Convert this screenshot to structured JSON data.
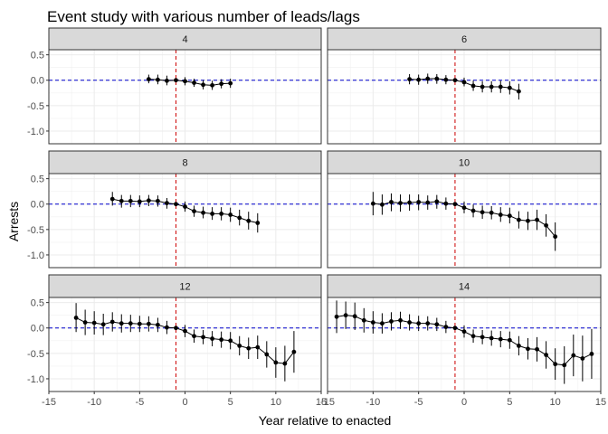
{
  "chart_data": {
    "type": "line",
    "title": "Event study with various number of leads/lags",
    "xlabel": "Year relative to enacted",
    "ylabel": "Arrests",
    "xlim": [
      -15,
      15
    ],
    "ylim": [
      -1.25,
      0.6
    ],
    "x_ticks": [
      -15,
      -10,
      -5,
      0,
      5,
      10,
      15
    ],
    "x_tick_labels": [
      "-15",
      "-10",
      "-5",
      "0",
      "5",
      "10",
      "15"
    ],
    "y_ticks": [
      0.5,
      0.0,
      -0.5,
      -1.0
    ],
    "y_tick_labels": [
      "0.5",
      "0.0",
      "-0.5",
      "-1.0"
    ],
    "reference_lines": {
      "horizontal_y": 0,
      "horizontal_color": "#0000cc",
      "vertical_x": -1,
      "vertical_color": "#cc0000"
    },
    "grid": true,
    "facets": [
      {
        "label": "4",
        "points": [
          {
            "x": -4,
            "y": 0.02,
            "lo": -0.06,
            "hi": 0.11
          },
          {
            "x": -3,
            "y": 0.01,
            "lo": -0.08,
            "hi": 0.11
          },
          {
            "x": -2,
            "y": -0.01,
            "lo": -0.1,
            "hi": 0.09
          },
          {
            "x": -1,
            "y": 0.0,
            "lo": 0.0,
            "hi": 0.0
          },
          {
            "x": 0,
            "y": -0.02,
            "lo": -0.1,
            "hi": 0.06
          },
          {
            "x": 1,
            "y": -0.05,
            "lo": -0.13,
            "hi": 0.03
          },
          {
            "x": 2,
            "y": -0.09,
            "lo": -0.18,
            "hi": 0.0
          },
          {
            "x": 3,
            "y": -0.1,
            "lo": -0.19,
            "hi": -0.01
          },
          {
            "x": 4,
            "y": -0.07,
            "lo": -0.16,
            "hi": 0.02
          },
          {
            "x": 5,
            "y": -0.06,
            "lo": -0.15,
            "hi": 0.03
          }
        ]
      },
      {
        "label": "6",
        "points": [
          {
            "x": -6,
            "y": 0.02,
            "lo": -0.08,
            "hi": 0.12
          },
          {
            "x": -5,
            "y": 0.01,
            "lo": -0.09,
            "hi": 0.11
          },
          {
            "x": -4,
            "y": 0.03,
            "lo": -0.07,
            "hi": 0.13
          },
          {
            "x": -3,
            "y": 0.03,
            "lo": -0.07,
            "hi": 0.12
          },
          {
            "x": -2,
            "y": 0.01,
            "lo": -0.08,
            "hi": 0.1
          },
          {
            "x": -1,
            "y": 0.0,
            "lo": 0.0,
            "hi": 0.0
          },
          {
            "x": 0,
            "y": -0.04,
            "lo": -0.12,
            "hi": 0.05
          },
          {
            "x": 1,
            "y": -0.11,
            "lo": -0.21,
            "hi": -0.01
          },
          {
            "x": 2,
            "y": -0.13,
            "lo": -0.24,
            "hi": -0.02
          },
          {
            "x": 3,
            "y": -0.13,
            "lo": -0.24,
            "hi": -0.02
          },
          {
            "x": 4,
            "y": -0.13,
            "lo": -0.25,
            "hi": -0.01
          },
          {
            "x": 5,
            "y": -0.15,
            "lo": -0.28,
            "hi": -0.02
          },
          {
            "x": 6,
            "y": -0.22,
            "lo": -0.38,
            "hi": -0.07
          }
        ]
      },
      {
        "label": "8",
        "points": [
          {
            "x": -8,
            "y": 0.1,
            "lo": -0.03,
            "hi": 0.24
          },
          {
            "x": -7,
            "y": 0.06,
            "lo": -0.07,
            "hi": 0.18
          },
          {
            "x": -6,
            "y": 0.06,
            "lo": -0.06,
            "hi": 0.18
          },
          {
            "x": -5,
            "y": 0.05,
            "lo": -0.06,
            "hi": 0.17
          },
          {
            "x": -4,
            "y": 0.07,
            "lo": -0.04,
            "hi": 0.18
          },
          {
            "x": -3,
            "y": 0.06,
            "lo": -0.05,
            "hi": 0.17
          },
          {
            "x": -2,
            "y": 0.02,
            "lo": -0.09,
            "hi": 0.12
          },
          {
            "x": -1,
            "y": 0.0,
            "lo": 0.0,
            "hi": 0.0
          },
          {
            "x": 0,
            "y": -0.05,
            "lo": -0.15,
            "hi": 0.05
          },
          {
            "x": 1,
            "y": -0.14,
            "lo": -0.25,
            "hi": -0.03
          },
          {
            "x": 2,
            "y": -0.17,
            "lo": -0.28,
            "hi": -0.05
          },
          {
            "x": 3,
            "y": -0.19,
            "lo": -0.31,
            "hi": -0.06
          },
          {
            "x": 4,
            "y": -0.19,
            "lo": -0.32,
            "hi": -0.06
          },
          {
            "x": 5,
            "y": -0.21,
            "lo": -0.35,
            "hi": -0.07
          },
          {
            "x": 6,
            "y": -0.27,
            "lo": -0.42,
            "hi": -0.11
          },
          {
            "x": 7,
            "y": -0.33,
            "lo": -0.5,
            "hi": -0.15
          },
          {
            "x": 8,
            "y": -0.37,
            "lo": -0.56,
            "hi": -0.18
          }
        ]
      },
      {
        "label": "10",
        "points": [
          {
            "x": -10,
            "y": 0.01,
            "lo": -0.22,
            "hi": 0.24
          },
          {
            "x": -9,
            "y": -0.01,
            "lo": -0.21,
            "hi": 0.19
          },
          {
            "x": -8,
            "y": 0.04,
            "lo": -0.14,
            "hi": 0.21
          },
          {
            "x": -7,
            "y": 0.02,
            "lo": -0.15,
            "hi": 0.19
          },
          {
            "x": -6,
            "y": 0.03,
            "lo": -0.13,
            "hi": 0.19
          },
          {
            "x": -5,
            "y": 0.04,
            "lo": -0.12,
            "hi": 0.19
          },
          {
            "x": -4,
            "y": 0.03,
            "lo": -0.11,
            "hi": 0.17
          },
          {
            "x": -3,
            "y": 0.05,
            "lo": -0.09,
            "hi": 0.18
          },
          {
            "x": -2,
            "y": 0.01,
            "lo": -0.11,
            "hi": 0.13
          },
          {
            "x": -1,
            "y": 0.0,
            "lo": 0.0,
            "hi": 0.0
          },
          {
            "x": 0,
            "y": -0.07,
            "lo": -0.18,
            "hi": 0.05
          },
          {
            "x": 1,
            "y": -0.13,
            "lo": -0.26,
            "hi": -0.01
          },
          {
            "x": 2,
            "y": -0.16,
            "lo": -0.29,
            "hi": -0.03
          },
          {
            "x": 3,
            "y": -0.17,
            "lo": -0.3,
            "hi": -0.04
          },
          {
            "x": 4,
            "y": -0.21,
            "lo": -0.35,
            "hi": -0.06
          },
          {
            "x": 5,
            "y": -0.23,
            "lo": -0.38,
            "hi": -0.07
          },
          {
            "x": 6,
            "y": -0.31,
            "lo": -0.48,
            "hi": -0.14
          },
          {
            "x": 7,
            "y": -0.33,
            "lo": -0.51,
            "hi": -0.15
          },
          {
            "x": 8,
            "y": -0.31,
            "lo": -0.51,
            "hi": -0.11
          },
          {
            "x": 9,
            "y": -0.42,
            "lo": -0.64,
            "hi": -0.2
          },
          {
            "x": 10,
            "y": -0.64,
            "lo": -0.92,
            "hi": -0.36
          }
        ]
      },
      {
        "label": "12",
        "points": [
          {
            "x": -12,
            "y": 0.2,
            "lo": -0.08,
            "hi": 0.49
          },
          {
            "x": -11,
            "y": 0.11,
            "lo": -0.14,
            "hi": 0.36
          },
          {
            "x": -10,
            "y": 0.1,
            "lo": -0.13,
            "hi": 0.33
          },
          {
            "x": -9,
            "y": 0.07,
            "lo": -0.14,
            "hi": 0.28
          },
          {
            "x": -8,
            "y": 0.12,
            "lo": -0.07,
            "hi": 0.31
          },
          {
            "x": -7,
            "y": 0.09,
            "lo": -0.09,
            "hi": 0.27
          },
          {
            "x": -6,
            "y": 0.09,
            "lo": -0.08,
            "hi": 0.26
          },
          {
            "x": -5,
            "y": 0.08,
            "lo": -0.08,
            "hi": 0.24
          },
          {
            "x": -4,
            "y": 0.08,
            "lo": -0.07,
            "hi": 0.23
          },
          {
            "x": -3,
            "y": 0.06,
            "lo": -0.08,
            "hi": 0.2
          },
          {
            "x": -2,
            "y": 0.01,
            "lo": -0.12,
            "hi": 0.14
          },
          {
            "x": -1,
            "y": 0.0,
            "lo": 0.0,
            "hi": 0.0
          },
          {
            "x": 0,
            "y": -0.06,
            "lo": -0.18,
            "hi": 0.06
          },
          {
            "x": 1,
            "y": -0.16,
            "lo": -0.29,
            "hi": -0.03
          },
          {
            "x": 2,
            "y": -0.18,
            "lo": -0.32,
            "hi": -0.04
          },
          {
            "x": 3,
            "y": -0.21,
            "lo": -0.36,
            "hi": -0.06
          },
          {
            "x": 4,
            "y": -0.23,
            "lo": -0.39,
            "hi": -0.07
          },
          {
            "x": 5,
            "y": -0.25,
            "lo": -0.42,
            "hi": -0.08
          },
          {
            "x": 6,
            "y": -0.35,
            "lo": -0.54,
            "hi": -0.16
          },
          {
            "x": 7,
            "y": -0.4,
            "lo": -0.61,
            "hi": -0.19
          },
          {
            "x": 8,
            "y": -0.38,
            "lo": -0.61,
            "hi": -0.15
          },
          {
            "x": 9,
            "y": -0.52,
            "lo": -0.78,
            "hi": -0.26
          },
          {
            "x": 10,
            "y": -0.68,
            "lo": -0.98,
            "hi": -0.38
          },
          {
            "x": 11,
            "y": -0.7,
            "lo": -1.05,
            "hi": -0.35
          },
          {
            "x": 12,
            "y": -0.47,
            "lo": -0.88,
            "hi": -0.06
          }
        ]
      },
      {
        "label": "14",
        "points": [
          {
            "x": -14,
            "y": 0.22,
            "lo": -0.1,
            "hi": 0.54
          },
          {
            "x": -13,
            "y": 0.25,
            "lo": -0.02,
            "hi": 0.52
          },
          {
            "x": -12,
            "y": 0.23,
            "lo": -0.04,
            "hi": 0.5
          },
          {
            "x": -11,
            "y": 0.15,
            "lo": -0.09,
            "hi": 0.39
          },
          {
            "x": -10,
            "y": 0.11,
            "lo": -0.11,
            "hi": 0.33
          },
          {
            "x": -9,
            "y": 0.09,
            "lo": -0.11,
            "hi": 0.29
          },
          {
            "x": -8,
            "y": 0.13,
            "lo": -0.05,
            "hi": 0.31
          },
          {
            "x": -7,
            "y": 0.15,
            "lo": -0.02,
            "hi": 0.32
          },
          {
            "x": -6,
            "y": 0.11,
            "lo": -0.05,
            "hi": 0.27
          },
          {
            "x": -5,
            "y": 0.09,
            "lo": -0.06,
            "hi": 0.24
          },
          {
            "x": -4,
            "y": 0.09,
            "lo": -0.05,
            "hi": 0.23
          },
          {
            "x": -3,
            "y": 0.07,
            "lo": -0.06,
            "hi": 0.2
          },
          {
            "x": -2,
            "y": 0.02,
            "lo": -0.1,
            "hi": 0.14
          },
          {
            "x": -1,
            "y": 0.0,
            "lo": 0.0,
            "hi": 0.0
          },
          {
            "x": 0,
            "y": -0.07,
            "lo": -0.19,
            "hi": 0.05
          },
          {
            "x": 1,
            "y": -0.16,
            "lo": -0.29,
            "hi": -0.03
          },
          {
            "x": 2,
            "y": -0.18,
            "lo": -0.32,
            "hi": -0.04
          },
          {
            "x": 3,
            "y": -0.2,
            "lo": -0.35,
            "hi": -0.05
          },
          {
            "x": 4,
            "y": -0.22,
            "lo": -0.38,
            "hi": -0.06
          },
          {
            "x": 5,
            "y": -0.24,
            "lo": -0.41,
            "hi": -0.07
          },
          {
            "x": 6,
            "y": -0.35,
            "lo": -0.54,
            "hi": -0.16
          },
          {
            "x": 7,
            "y": -0.41,
            "lo": -0.62,
            "hi": -0.2
          },
          {
            "x": 8,
            "y": -0.42,
            "lo": -0.66,
            "hi": -0.18
          },
          {
            "x": 9,
            "y": -0.53,
            "lo": -0.8,
            "hi": -0.26
          },
          {
            "x": 10,
            "y": -0.71,
            "lo": -1.02,
            "hi": -0.4
          },
          {
            "x": 11,
            "y": -0.73,
            "lo": -1.1,
            "hi": -0.36
          },
          {
            "x": 12,
            "y": -0.54,
            "lo": -0.95,
            "hi": -0.13
          },
          {
            "x": 13,
            "y": -0.6,
            "lo": -1.05,
            "hi": -0.15
          },
          {
            "x": 14,
            "y": -0.51,
            "lo": -1.0,
            "hi": -0.02
          }
        ]
      }
    ]
  }
}
